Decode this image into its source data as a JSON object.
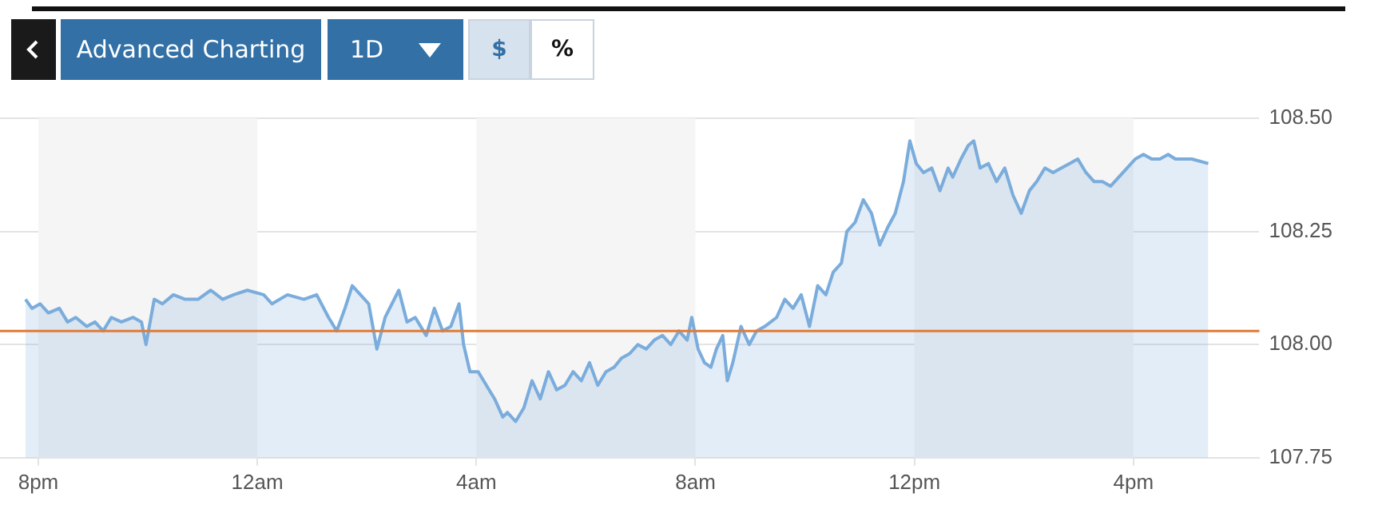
{
  "chart_data": {
    "type": "area",
    "annotations": [
      "Advanced Charting",
      "1D",
      "$",
      "%"
    ],
    "x": [
      "--01-01T19:46",
      "--01-01T19:53",
      "--01-01T20:02",
      "--01-01T20:11",
      "--01-01T20:23",
      "--01-01T20:32",
      "--01-01T20:41",
      "--01-01T20:53",
      "--01-01T21:02",
      "--01-01T21:11",
      "--01-01T21:20",
      "--01-01T21:31",
      "--01-01T21:44",
      "--01-01T21:53",
      "--01-01T21:58",
      "--01-01T22:07",
      "--01-01T22:16",
      "--01-01T22:28",
      "--01-01T22:41",
      "--01-01T22:55",
      "--01-01T23:09",
      "--01-01T23:22",
      "--01-01T23:34",
      "--01-01T23:49",
      "--01-02T00:07",
      "--01-02T00:16",
      "--01-02T00:33",
      "--01-02T00:51",
      "--01-02T01:05",
      "--01-02T01:18",
      "--01-02T01:27",
      "--01-02T01:36",
      "--01-02T01:44",
      "--01-02T01:53",
      "--01-02T02:02",
      "--01-02T02:11",
      "--01-02T02:20",
      "--01-02T02:35",
      "--01-02T02:44",
      "--01-02T02:53",
      "--01-02T03:05",
      "--01-02T03:14",
      "--01-02T03:23",
      "--01-02T03:32",
      "--01-02T03:41",
      "--01-02T03:46",
      "--01-02T03:53",
      "--01-02T04:02",
      "--01-02T04:11",
      "--01-02T04:20",
      "--01-02T04:29",
      "--01-02T04:34",
      "--01-02T04:43",
      "--01-02T04:52",
      "--01-02T05:01",
      "--01-02T05:10",
      "--01-02T05:19",
      "--01-02T05:28",
      "--01-02T05:37",
      "--01-02T05:46",
      "--01-02T05:55",
      "--01-02T06:04",
      "--01-02T06:13",
      "--01-02T06:22",
      "--01-02T06:31",
      "--01-02T06:39",
      "--01-02T06:48",
      "--01-02T06:57",
      "--01-02T07:06",
      "--01-02T07:15",
      "--01-02T07:24",
      "--01-02T07:33",
      "--01-02T07:42",
      "--01-02T07:51",
      "--01-02T07:56",
      "--01-02T08:03",
      "--01-02T08:10",
      "--01-02T08:17",
      "--01-02T08:23",
      "--01-02T08:30",
      "--01-02T08:35",
      "--01-02T08:41",
      "--01-02T08:50",
      "--01-02T08:59",
      "--01-02T09:07",
      "--01-02T09:16",
      "--01-02T09:29",
      "--01-02T09:38",
      "--01-02T09:47",
      "--01-02T09:56",
      "--01-02T10:05",
      "--01-02T10:14",
      "--01-02T10:23",
      "--01-02T10:31",
      "--01-02T10:40",
      "--01-02T10:46",
      "--01-02T10:55",
      "--01-02T11:04",
      "--01-02T11:13",
      "--01-02T11:22",
      "--01-02T11:31",
      "--01-02T11:39",
      "--01-02T11:48",
      "--01-02T11:55",
      "--01-02T12:02",
      "--01-02T12:10",
      "--01-02T12:19",
      "--01-02T12:28",
      "--01-02T12:37",
      "--01-02T12:42",
      "--01-02T12:51",
      "--01-02T12:59",
      "--01-02T13:05",
      "--01-02T13:12",
      "--01-02T13:21",
      "--01-02T13:30",
      "--01-02T13:39",
      "--01-02T13:48",
      "--01-02T13:57",
      "--01-02T14:06",
      "--01-02T14:14",
      "--01-02T14:23",
      "--01-02T14:32",
      "--01-02T14:41",
      "--01-02T14:50",
      "--01-02T14:59",
      "--01-02T15:08",
      "--01-02T15:17",
      "--01-02T15:26",
      "--01-02T15:35",
      "--01-02T15:44",
      "--01-02T15:53",
      "--01-02T16:02",
      "--01-02T16:11",
      "--01-02T16:20",
      "--01-02T16:29",
      "--01-02T16:38",
      "--01-02T16:46",
      "--01-02T16:55",
      "--01-02T17:04",
      "--01-02T17:22"
    ],
    "series": [
      {
        "color": "#7aacdc",
        "values": [
          108.1,
          108.08,
          108.09,
          108.07,
          108.08,
          108.05,
          108.06,
          108.04,
          108.05,
          108.03,
          108.06,
          108.05,
          108.06,
          108.05,
          108.0,
          108.1,
          108.09,
          108.11,
          108.1,
          108.1,
          108.12,
          108.1,
          108.11,
          108.12,
          108.11,
          108.09,
          108.11,
          108.1,
          108.11,
          108.06,
          108.03,
          108.08,
          108.13,
          108.11,
          108.09,
          107.99,
          108.06,
          108.12,
          108.05,
          108.06,
          108.02,
          108.08,
          108.03,
          108.04,
          108.09,
          108.0,
          107.94,
          107.94,
          107.91,
          107.88,
          107.84,
          107.85,
          107.83,
          107.86,
          107.92,
          107.88,
          107.94,
          107.9,
          107.91,
          107.94,
          107.92,
          107.96,
          107.91,
          107.94,
          107.95,
          107.97,
          107.98,
          108.0,
          107.99,
          108.01,
          108.02,
          108.0,
          108.03,
          108.01,
          108.06,
          107.99,
          107.96,
          107.95,
          107.99,
          108.02,
          107.92,
          107.96,
          108.04,
          108.0,
          108.03,
          108.04,
          108.06,
          108.1,
          108.08,
          108.11,
          108.04,
          108.13,
          108.11,
          108.16,
          108.18,
          108.25,
          108.27,
          108.32,
          108.29,
          108.22,
          108.26,
          108.29,
          108.36,
          108.45,
          108.4,
          108.38,
          108.39,
          108.34,
          108.39,
          108.37,
          108.41,
          108.44,
          108.45,
          108.39,
          108.4,
          108.36,
          108.39,
          108.33,
          108.29,
          108.34,
          108.36,
          108.39,
          108.38,
          108.39,
          108.4,
          108.41,
          108.38,
          108.36,
          108.36,
          108.35,
          108.37,
          108.39,
          108.41,
          108.42,
          108.41,
          108.41,
          108.42,
          108.41,
          108.41,
          108.41,
          108.4
        ]
      }
    ],
    "xlim": [
      "--01-01T19:18",
      "--01-02T18:18"
    ],
    "xticks": [
      {
        "value": "--01-01T20:00",
        "label": "8pm"
      },
      {
        "value": "--01-02T00:00",
        "label": "12am"
      },
      {
        "value": "--01-02T04:00",
        "label": "4am"
      },
      {
        "value": "--01-02T08:00",
        "label": "8am"
      },
      {
        "value": "--01-02T12:00",
        "label": "12pm"
      },
      {
        "value": "--01-02T16:00",
        "label": "4pm"
      }
    ],
    "ylim": [
      107.75,
      108.5
    ],
    "yticks": [
      {
        "value": 107.75,
        "label": "107.75"
      },
      {
        "value": 108,
        "label": "108.00"
      },
      {
        "value": 108.25,
        "label": "108.25"
      },
      {
        "value": 108.5,
        "label": "108.50"
      }
    ],
    "grid": "y",
    "ref_lines": [
      {
        "axis": "y",
        "value": 108.03,
        "color": "#e07b39"
      }
    ],
    "bands": [
      {
        "axis": "x",
        "from": "--01-01T20:00",
        "to": "--01-02T00:00",
        "color": "#f5f5f5"
      },
      {
        "axis": "x",
        "from": "--01-02T04:00",
        "to": "--01-02T08:00",
        "color": "#f5f5f5"
      },
      {
        "axis": "x",
        "from": "--01-02T12:00",
        "to": "--01-02T16:00",
        "color": "#f5f5f5"
      }
    ]
  }
}
